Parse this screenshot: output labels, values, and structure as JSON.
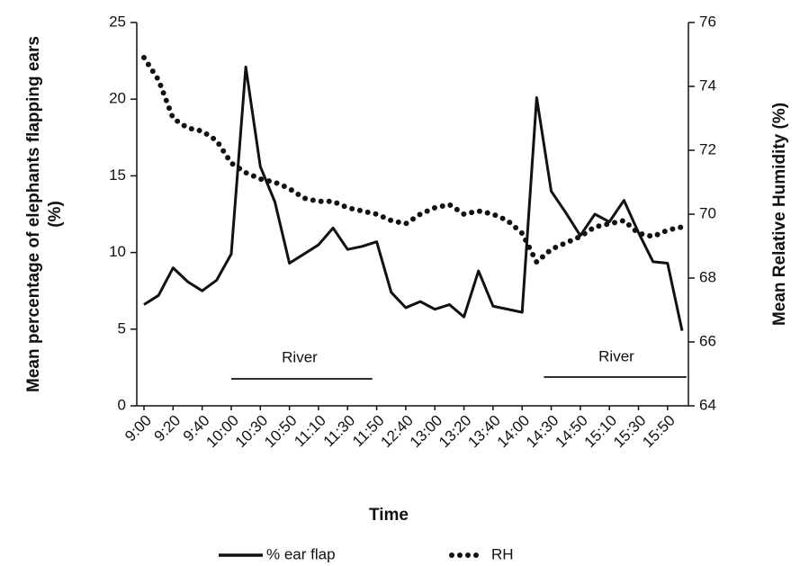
{
  "chart_data": {
    "type": "line",
    "x_label": "Time",
    "y_label": [
      "Mean percentage of elephants flapping ears",
      "(%)"
    ],
    "y2_label": "Mean Relative Humidity (%)",
    "annotations": [
      "River",
      "River"
    ],
    "categories": [
      "9:00",
      null,
      "9:20",
      null,
      "9:40",
      null,
      "10:00",
      null,
      "10:30",
      null,
      "10:50",
      null,
      "11:10",
      null,
      "11:30",
      null,
      "11:50",
      null,
      "12:40",
      null,
      "13:00",
      null,
      "13:20",
      null,
      "13:40",
      null,
      "14:00",
      null,
      "14:30",
      null,
      "14:50",
      null,
      "15:10",
      null,
      "15:30",
      null,
      "15:50",
      null
    ],
    "series": [
      {
        "name": "% ear flap",
        "color": "#111111",
        "style": "solid",
        "values": [
          6.6,
          7.2,
          9.0,
          8.1,
          7.5,
          8.2,
          9.9,
          22.1,
          15.6,
          13.3,
          9.3,
          9.9,
          10.5,
          11.6,
          10.2,
          10.4,
          10.7,
          7.4,
          6.4,
          6.8,
          6.3,
          6.6,
          5.8,
          8.8,
          6.5,
          6.3,
          6.1,
          20.1,
          14.0,
          12.6,
          11.1,
          12.5,
          12.0,
          13.4,
          11.3,
          9.4,
          9.3,
          4.9
        ]
      },
      {
        "name": "RH",
        "color": "#111111",
        "style": "dotted",
        "axis": "y2",
        "values": [
          74.9,
          74.2,
          73.0,
          72.7,
          72.6,
          72.3,
          71.6,
          71.3,
          71.1,
          71.0,
          70.8,
          70.5,
          70.4,
          70.4,
          70.2,
          70.1,
          70.0,
          69.8,
          69.7,
          70.0,
          70.2,
          70.3,
          70.0,
          70.1,
          70.0,
          69.8,
          69.4,
          68.5,
          68.9,
          69.1,
          69.3,
          69.6,
          69.7,
          69.8,
          69.4,
          69.3,
          69.5,
          69.6
        ]
      }
    ],
    "ylim": [
      0,
      25
    ],
    "yticks": [
      0,
      5,
      10,
      15,
      20,
      25
    ],
    "y2lim": [
      64,
      76
    ],
    "y2ticks": [
      64,
      66,
      68,
      70,
      72,
      74,
      76
    ],
    "grid": false
  }
}
